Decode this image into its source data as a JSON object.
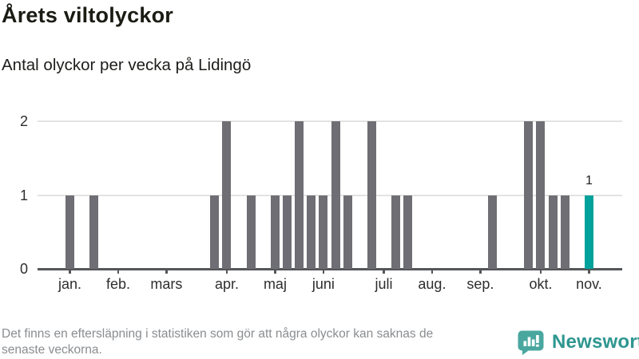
{
  "header": {
    "title": "Årets viltolyckor",
    "subtitle": "Antal olyckor per vecka på Lidingö"
  },
  "footer": {
    "note_line1": "Det finns en eftersläpning i statistiken som gör att några olyckor kan saknas de",
    "note_line2": "senaste veckorna.",
    "brand_name": "Newsworthy",
    "brand_logo_icon": "speech-bubble-bar-chart-icon"
  },
  "chart_data": {
    "type": "bar",
    "title": "Årets viltolyckor",
    "subtitle": "Antal olyckor per vecka på Lidingö",
    "x_unit": "vecka",
    "num_weeks": 44,
    "values": [
      1,
      0,
      1,
      0,
      0,
      0,
      0,
      0,
      0,
      0,
      0,
      0,
      1,
      2,
      0,
      1,
      0,
      1,
      1,
      2,
      1,
      1,
      2,
      1,
      0,
      2,
      0,
      1,
      1,
      0,
      0,
      0,
      0,
      0,
      0,
      1,
      0,
      0,
      2,
      2,
      1,
      1,
      0,
      1
    ],
    "highlight_index": 43,
    "highlight_label": "1",
    "yticks": [
      0,
      1,
      2
    ],
    "ylim": [
      0,
      2
    ],
    "grid": true,
    "legend": "none",
    "month_ticks": [
      {
        "index": 0,
        "label": "jan."
      },
      {
        "index": 4,
        "label": "feb."
      },
      {
        "index": 8,
        "label": "mars"
      },
      {
        "index": 13,
        "label": "apr."
      },
      {
        "index": 17,
        "label": "maj"
      },
      {
        "index": 21,
        "label": "juni"
      },
      {
        "index": 26,
        "label": "juli"
      },
      {
        "index": 30,
        "label": "aug."
      },
      {
        "index": 34,
        "label": "sep."
      },
      {
        "index": 39,
        "label": "okt."
      },
      {
        "index": 43,
        "label": "nov."
      }
    ],
    "colors": {
      "bar": "#6e6e74",
      "highlight": "#00a29b",
      "grid": "#e3e3e3",
      "axis": "#55565a",
      "brand_teal": "#4aa79f",
      "brand_text": "#2e968f"
    }
  }
}
